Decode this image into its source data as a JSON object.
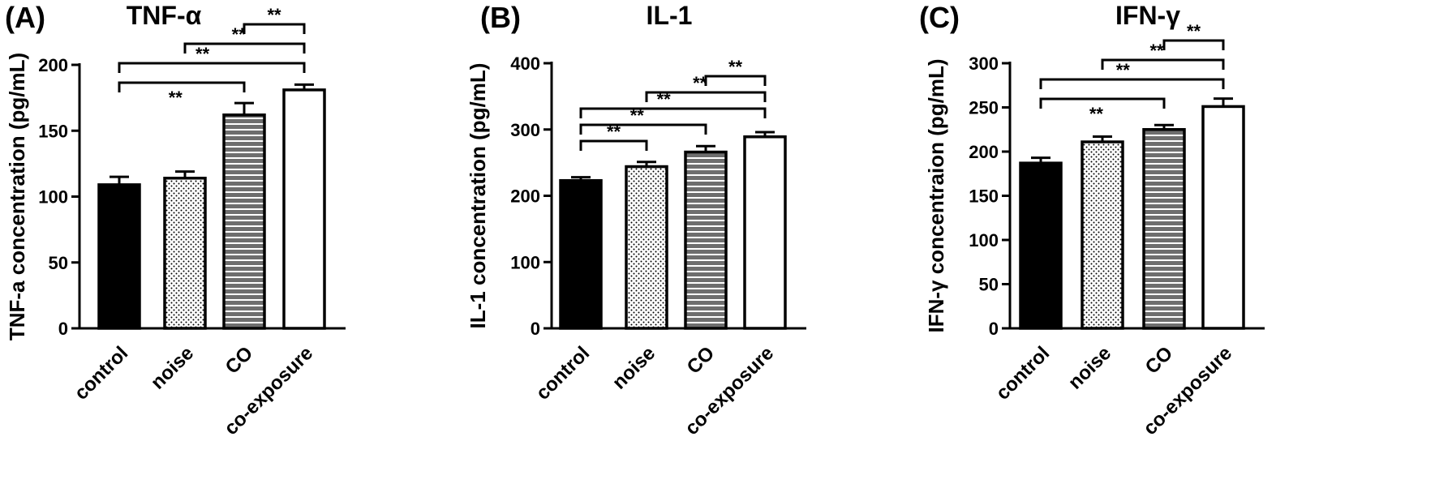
{
  "pattern_names": [
    "solid-black",
    "dots",
    "horizontal-stripes",
    "solid-white"
  ],
  "chart_data": [
    {
      "type": "bar",
      "panel": "(A)",
      "title": "TNF-α",
      "ylabel": "TNF-a concentration (pg/mL)",
      "xlabel": "",
      "categories": [
        "control",
        "noise",
        "CO",
        "co-exposure"
      ],
      "values": [
        109,
        114,
        162,
        181
      ],
      "errors": [
        6,
        5,
        9,
        4
      ],
      "ylim": [
        0,
        200
      ],
      "yticks": [
        "0",
        "50",
        "100",
        "150",
        "200"
      ],
      "significance": [
        {
          "from": 0,
          "to": 2,
          "label": "**",
          "level": 0
        },
        {
          "from": 0,
          "to": 3,
          "label": "**",
          "level": 1
        },
        {
          "from": 1,
          "to": 3,
          "label": "**",
          "level": 2
        },
        {
          "from": 2,
          "to": 3,
          "label": "**",
          "level": 3
        }
      ]
    },
    {
      "type": "bar",
      "panel": "(B)",
      "title": "IL-1",
      "ylabel": "IL-1 concentration (pg/mL)",
      "xlabel": "",
      "categories": [
        "control",
        "noise",
        "CO",
        "co-exposure"
      ],
      "values": [
        223,
        244,
        266,
        289
      ],
      "errors": [
        5,
        7,
        9,
        7
      ],
      "ylim": [
        0,
        400
      ],
      "yticks": [
        "0",
        "100",
        "200",
        "300",
        "400"
      ],
      "significance": [
        {
          "from": 0,
          "to": 1,
          "label": "**",
          "level": 0
        },
        {
          "from": 0,
          "to": 2,
          "label": "**",
          "level": 1
        },
        {
          "from": 0,
          "to": 3,
          "label": "**",
          "level": 2
        },
        {
          "from": 1,
          "to": 3,
          "label": "**",
          "level": 3
        },
        {
          "from": 2,
          "to": 3,
          "label": "**",
          "level": 4
        }
      ]
    },
    {
      "type": "bar",
      "panel": "(C)",
      "title": "IFN-γ",
      "ylabel": "IFN-γ concentraion (pg/mL)",
      "xlabel": "",
      "categories": [
        "control",
        "noise",
        "CO",
        "co-exposure"
      ],
      "values": [
        187,
        211,
        225,
        251
      ],
      "errors": [
        6,
        6,
        5,
        9
      ],
      "ylim": [
        0,
        300
      ],
      "yticks": [
        "0",
        "50",
        "100",
        "150",
        "200",
        "250",
        "300"
      ],
      "significance": [
        {
          "from": 0,
          "to": 2,
          "label": "**",
          "level": 0
        },
        {
          "from": 0,
          "to": 3,
          "label": "**",
          "level": 1
        },
        {
          "from": 1,
          "to": 3,
          "label": "**",
          "level": 2
        },
        {
          "from": 2,
          "to": 3,
          "label": "**",
          "level": 3
        }
      ]
    }
  ]
}
